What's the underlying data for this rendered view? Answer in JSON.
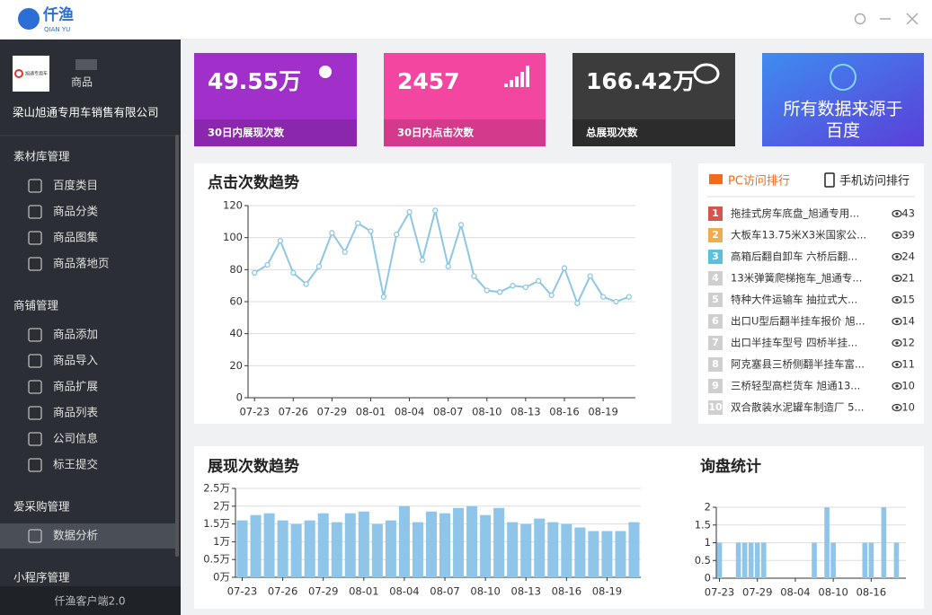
{
  "header": {
    "logo": "仟渔",
    "logo_sub": "QIAN YU"
  },
  "sidebar": {
    "logo_text": "旭通专用车",
    "user": "商品",
    "company": "梁山旭通专用车销售有限公司",
    "groups": [
      {
        "title": "素材库管理",
        "items": [
          "百度类目",
          "商品分类",
          "商品图集",
          "商品落地页"
        ]
      },
      {
        "title": "商铺管理",
        "items": [
          "商品添加",
          "商品导入",
          "商品扩展",
          "商品列表",
          "公司信息",
          "标王提交"
        ]
      },
      {
        "title": "爱采购管理",
        "items": [
          "数据分析"
        ]
      },
      {
        "title": "小程序管理"
      }
    ],
    "footer": "仟渔客户端2.0"
  },
  "stats": [
    {
      "value": "49.55万",
      "label": "30日内展现次数"
    },
    {
      "value": "2457",
      "label": "30日内点击次数"
    },
    {
      "value": "166.42万",
      "label": "总展现次数"
    }
  ],
  "banner": {
    "line1": "所有数据来源于",
    "line2": "百度"
  },
  "ranking": {
    "tabs": [
      "PC访问排行",
      "手机访问排行"
    ],
    "rows": [
      {
        "rank": 1,
        "title": "拖挂式房车底盘_旭通专用...",
        "views": 43
      },
      {
        "rank": 2,
        "title": "大板车13.75米X3米国家公...",
        "views": 39
      },
      {
        "rank": 3,
        "title": "高箱后翻自卸车 六桥后翻...",
        "views": 24
      },
      {
        "rank": 4,
        "title": "13米弹簧爬梯拖车_旭通专...",
        "views": 21
      },
      {
        "rank": 5,
        "title": "特种大件运输车 抽拉式大...",
        "views": 15
      },
      {
        "rank": 6,
        "title": "出口U型后翻半挂车报价 旭...",
        "views": 14
      },
      {
        "rank": 7,
        "title": "出口半挂车型号 四桥半挂...",
        "views": 12
      },
      {
        "rank": 8,
        "title": "阿克塞县三桥侧翻半挂车富...",
        "views": 11
      },
      {
        "rank": 9,
        "title": "三桥轻型高栏货车 旭通13...",
        "views": 10
      },
      {
        "rank": 10,
        "title": "双合散装水泥罐车制造厂 5...",
        "views": 10
      }
    ]
  },
  "chart_data": [
    {
      "type": "line",
      "title": "点击次数趋势",
      "color": "#8ec7e3",
      "grid": true,
      "categories": [
        "07-23",
        null,
        null,
        "07-26",
        null,
        null,
        "07-29",
        null,
        null,
        "08-01",
        null,
        null,
        "08-04",
        null,
        null,
        "08-07",
        null,
        null,
        "08-10",
        null,
        null,
        "08-13",
        null,
        null,
        "08-16",
        null,
        null,
        "08-19",
        null,
        null
      ],
      "values": [
        78,
        83,
        98,
        78,
        71,
        82,
        103,
        91,
        109,
        104,
        63,
        102,
        116,
        86,
        117,
        82,
        108,
        76,
        67,
        66,
        70,
        69,
        73,
        64,
        81,
        59,
        76,
        63,
        60,
        63
      ],
      "ylim": [
        0,
        120
      ],
      "yticks": [
        0,
        20,
        40,
        60,
        80,
        100,
        120
      ]
    },
    {
      "type": "bar",
      "title": "展现次数趋势",
      "color": "#8fc5e8",
      "grid": true,
      "categories": [
        "07-23",
        null,
        null,
        "07-26",
        null,
        null,
        "07-29",
        null,
        null,
        "08-01",
        null,
        null,
        "08-04",
        null,
        null,
        "08-07",
        null,
        null,
        "08-10",
        null,
        null,
        "08-13",
        null,
        null,
        "08-16",
        null,
        null,
        "08-19",
        null,
        null
      ],
      "values": [
        1.6,
        1.75,
        1.8,
        1.6,
        1.5,
        1.6,
        1.8,
        1.55,
        1.8,
        1.85,
        1.5,
        1.6,
        2,
        1.55,
        1.85,
        1.8,
        1.95,
        2,
        1.75,
        1.95,
        1.55,
        1.5,
        1.65,
        1.55,
        1.5,
        1.4,
        1.3,
        1.3,
        1.3,
        1.55
      ],
      "ylim": [
        0,
        2.5
      ],
      "yticks": [
        {
          "value": 0,
          "label": "0万"
        },
        {
          "value": 0.5,
          "label": "0.5万"
        },
        {
          "value": 1,
          "label": "1万"
        },
        {
          "value": 1.5,
          "label": "1.5万"
        },
        {
          "value": 2,
          "label": "2万"
        },
        {
          "value": 2.5,
          "label": "2.5万"
        }
      ]
    },
    {
      "type": "bar",
      "title": "询盘统计",
      "color": "#8fc5e8",
      "grid": true,
      "categories": [
        "07-23",
        null,
        null,
        null,
        null,
        null,
        "07-29",
        null,
        null,
        null,
        null,
        null,
        "08-04",
        null,
        null,
        null,
        null,
        null,
        "08-10",
        null,
        null,
        null,
        null,
        null,
        "08-16",
        null,
        null,
        null,
        null,
        null
      ],
      "values": [
        1,
        0,
        0,
        1,
        1,
        1,
        1,
        1,
        0,
        0,
        0,
        0,
        0,
        0,
        0,
        1,
        0,
        2,
        1,
        0,
        0,
        0,
        0,
        1,
        1,
        0,
        2,
        0,
        1,
        0
      ],
      "ylim": [
        0,
        2
      ],
      "yticks": [
        0,
        0.5,
        1,
        1.5,
        2
      ]
    }
  ]
}
